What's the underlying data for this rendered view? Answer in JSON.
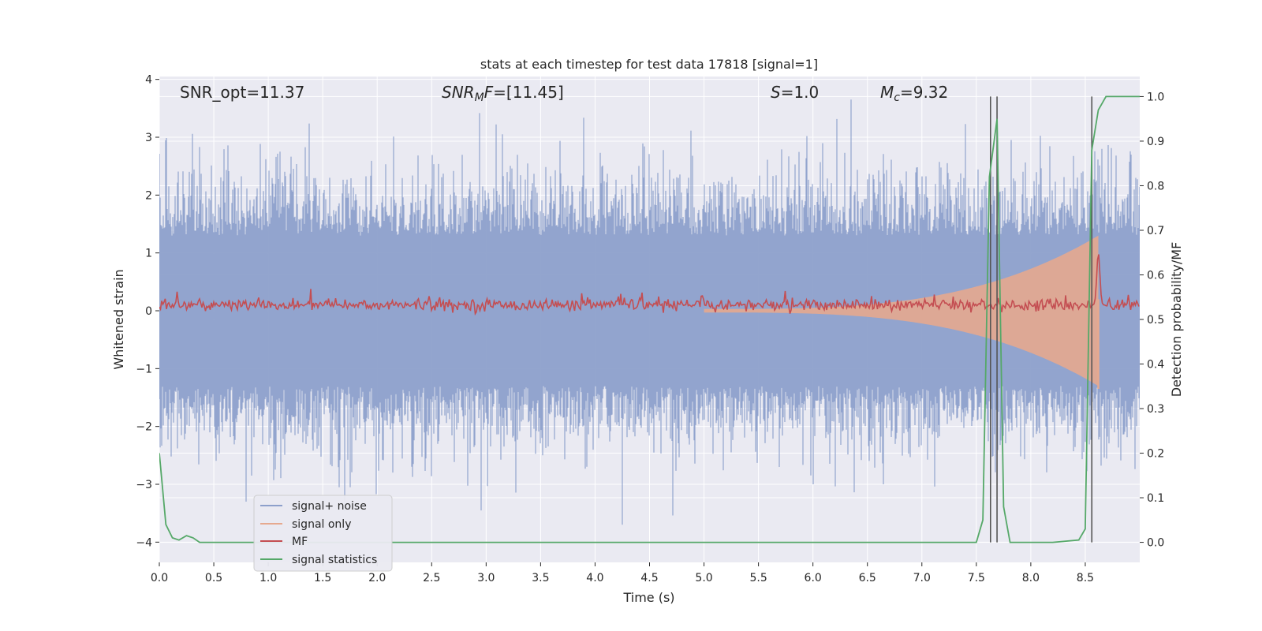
{
  "chart_data": {
    "type": "line",
    "title": "stats at each timestep for test data 17818 [signal=1]",
    "xlabel": "Time (s)",
    "ylabel": "Whitened strain",
    "y2label": "Detection probability/MF",
    "xlim": [
      0.0,
      9.0
    ],
    "ylim": [
      -4.35,
      4.05
    ],
    "y2lim": [
      -0.045,
      1.045
    ],
    "xticks": [
      "0.0",
      "0.5",
      "1.0",
      "1.5",
      "2.0",
      "2.5",
      "3.0",
      "3.5",
      "4.0",
      "4.5",
      "5.0",
      "5.5",
      "6.0",
      "6.5",
      "7.0",
      "7.5",
      "8.0",
      "8.5"
    ],
    "xtick_values": [
      0,
      0.5,
      1,
      1.5,
      2,
      2.5,
      3,
      3.5,
      4,
      4.5,
      5,
      5.5,
      6,
      6.5,
      7,
      7.5,
      8,
      8.5
    ],
    "yticks": [
      "4",
      "3",
      "2",
      "1",
      "0",
      "−1",
      "−2",
      "−3",
      "−4"
    ],
    "ytick_values": [
      4,
      3,
      2,
      1,
      0,
      -1,
      -2,
      -3,
      -4
    ],
    "y2ticks": [
      "1.0",
      "0.9",
      "0.8",
      "0.7",
      "0.6",
      "0.5",
      "0.4",
      "0.3",
      "0.2",
      "0.1",
      "0.0"
    ],
    "y2tick_values": [
      1.0,
      0.9,
      0.8,
      0.7,
      0.6,
      0.5,
      0.4,
      0.3,
      0.2,
      0.1,
      0.0
    ],
    "annotations": {
      "snr_opt": "SNR_opt=11.37",
      "snr_mf_label": "SNR",
      "snr_mf_sub": "M",
      "snr_mf_rest": "F",
      "snr_mf_value": "=[11.45]",
      "s_label": "S",
      "s_value": "=1.0",
      "mc_label": "M",
      "mc_sub": "c",
      "mc_value": "=9.32"
    },
    "legend": {
      "placement": "lower-left",
      "entries": [
        {
          "label": "signal+ noise",
          "color": "#8da0cb"
        },
        {
          "label": "signal only",
          "color": "#e6a98f"
        },
        {
          "label": "MF",
          "color": "#c44e52"
        },
        {
          "label": "signal statistics",
          "color": "#55a868"
        }
      ]
    },
    "colors": {
      "noise": "#8da0cb",
      "signal": "#e6a98f",
      "mf": "#c44e52",
      "stat": "#55a868",
      "vlines": "#555555",
      "plot_bg": "#eaeaf2",
      "grid": "#ffffff"
    },
    "series": [
      {
        "name": "signal statistics",
        "axis": "right",
        "x": [
          0.0,
          0.06,
          0.12,
          0.18,
          0.25,
          0.31,
          0.37,
          0.44,
          0.5,
          1.0,
          2.0,
          3.0,
          4.0,
          5.0,
          6.0,
          7.0,
          7.5,
          7.56,
          7.62,
          7.69,
          7.75,
          7.81,
          7.88,
          8.2,
          8.44,
          8.5,
          8.56,
          8.62,
          8.69,
          8.75,
          9.0
        ],
        "values": [
          0.2,
          0.04,
          0.01,
          0.005,
          0.015,
          0.01,
          0.0,
          0.0,
          0.0,
          0.0,
          0.0,
          0.0,
          0.0,
          0.0,
          0.0,
          0.0,
          0.0,
          0.05,
          0.82,
          0.95,
          0.08,
          0.0,
          0.0,
          0.0,
          0.005,
          0.03,
          0.88,
          0.97,
          1.0,
          1.0,
          1.0
        ]
      },
      {
        "name": "signal+ noise",
        "axis": "left",
        "description_type": "dense noise",
        "envelope": [
          -1.3,
          1.3
        ],
        "peaks": [
          {
            "x": 0.06,
            "y": 2.95
          },
          {
            "x": 0.3,
            "y": 2.3
          },
          {
            "x": 0.85,
            "y": -2.85
          },
          {
            "x": 1.75,
            "y": -3.05
          },
          {
            "x": 3.15,
            "y": 3.05
          },
          {
            "x": 4.25,
            "y": -3.7
          },
          {
            "x": 6.35,
            "y": 3.65
          },
          {
            "x": 6.0,
            "y": -3.0
          },
          {
            "x": 6.65,
            "y": -3.0
          },
          {
            "x": 8.65,
            "y": 2.8
          }
        ]
      },
      {
        "name": "MF",
        "axis": "left",
        "baseline": 0.1,
        "spike": {
          "x": 8.62,
          "y": 1.0
        }
      },
      {
        "name": "signal only",
        "axis": "left",
        "chirp_start": 5.0,
        "merger": 8.62,
        "peak_amplitude": 1.3,
        "ringdown_low": -1.35
      }
    ],
    "vertical_lines": [
      7.63,
      7.69,
      8.56
    ]
  }
}
